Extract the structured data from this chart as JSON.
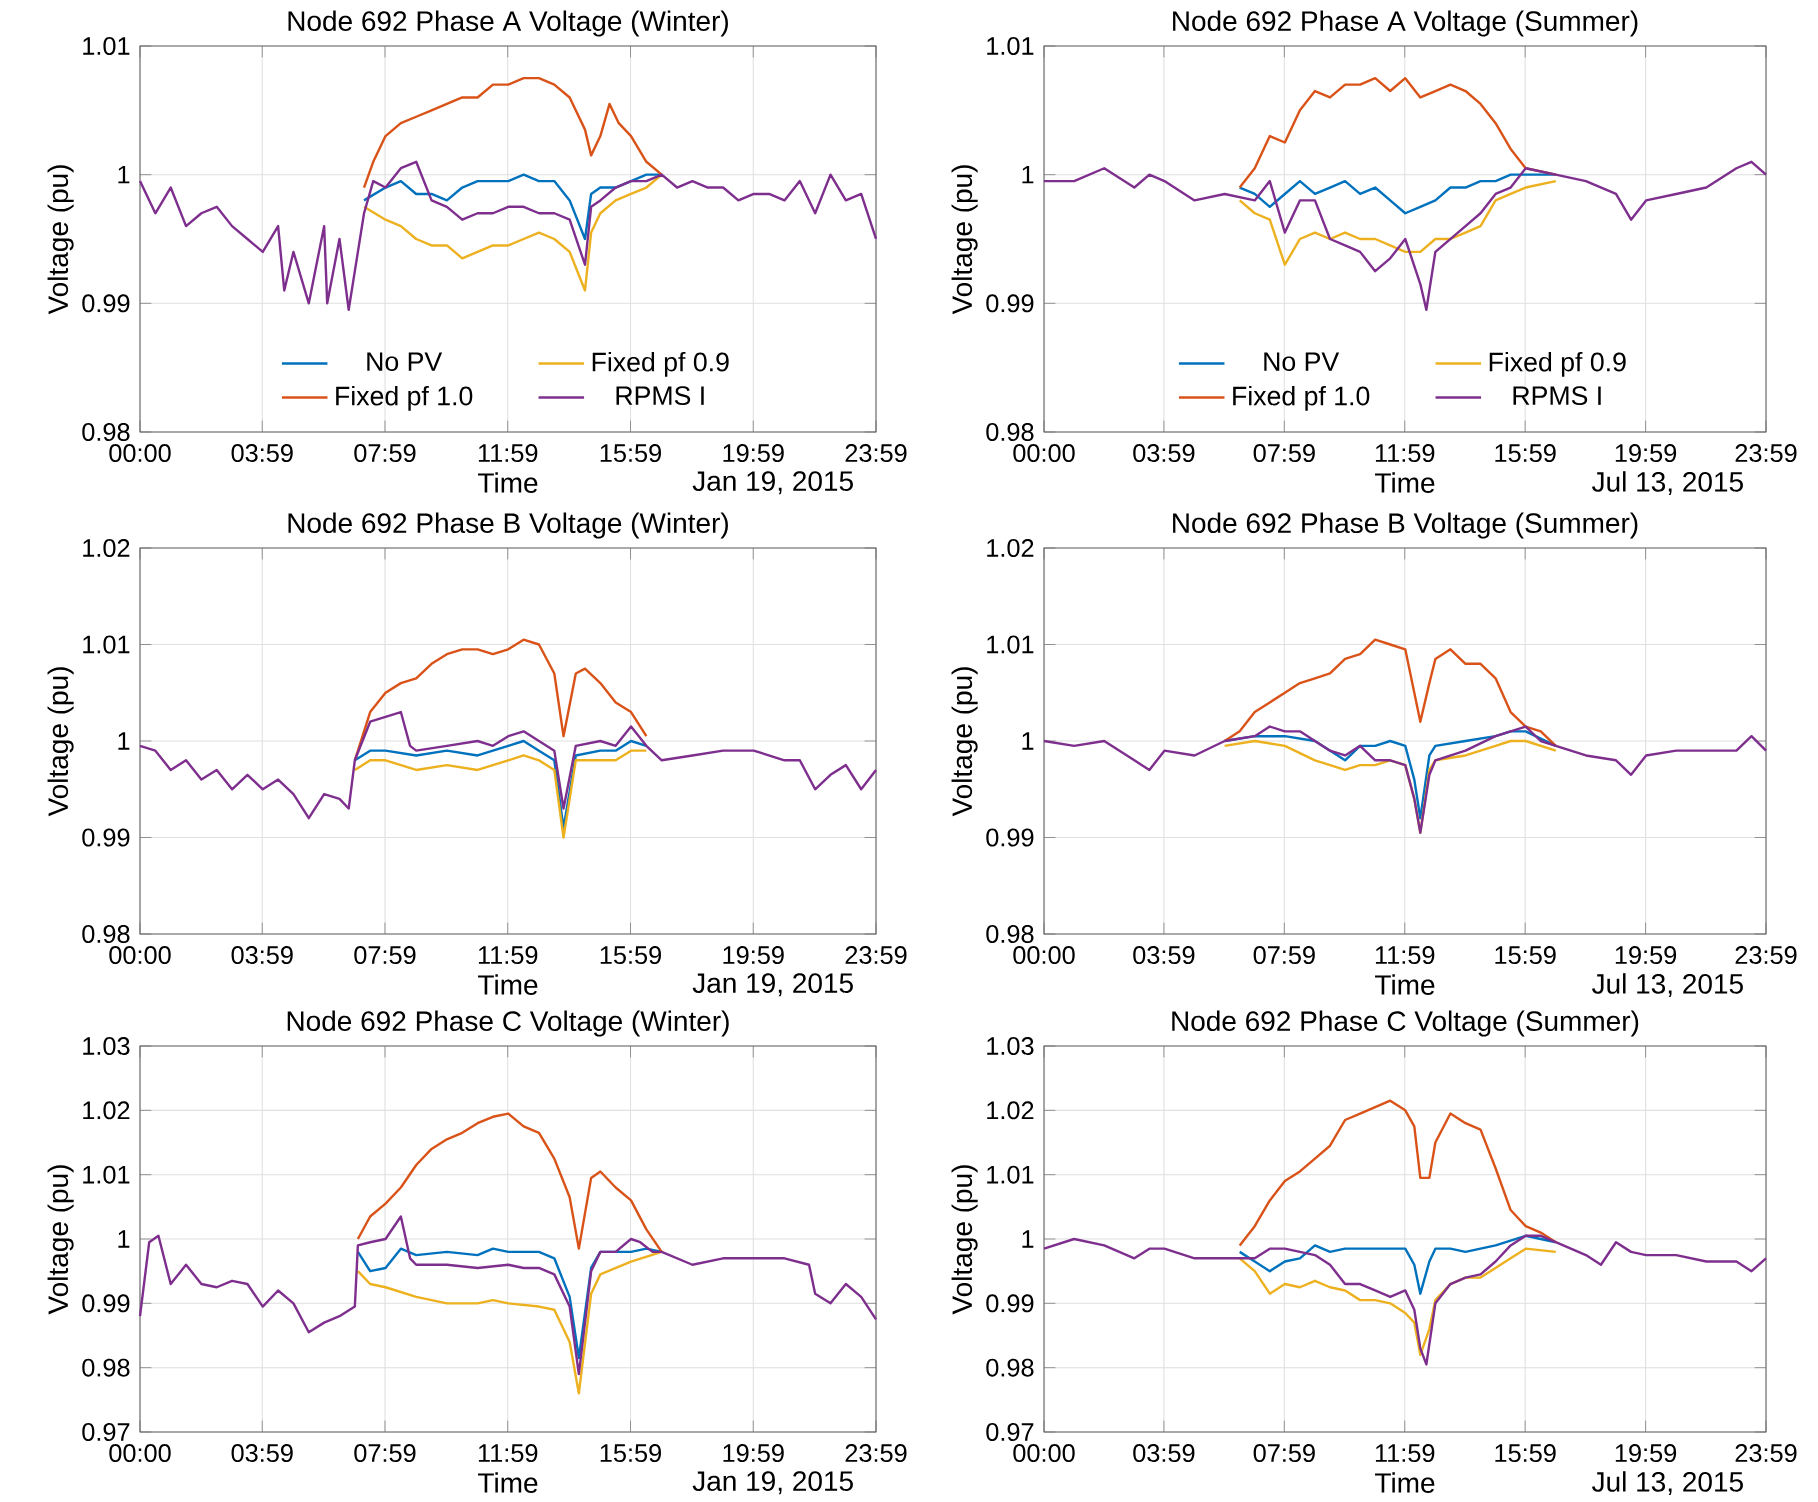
{
  "chart_data": [
    {
      "type": "line",
      "title": "Node 692 Phase A Voltage (Winter)",
      "xlabel": "Time",
      "ylabel": "Voltage (pu)",
      "annotations": [
        "Jan 19, 2015"
      ],
      "xlim": [
        0,
        23.983
      ],
      "xticks": [
        {
          "value": 0,
          "label": "00:00"
        },
        {
          "value": 3.983,
          "label": "03:59"
        },
        {
          "value": 7.983,
          "label": "07:59"
        },
        {
          "value": 11.983,
          "label": "11:59"
        },
        {
          "value": 15.983,
          "label": "15:59"
        },
        {
          "value": 19.983,
          "label": "19:59"
        },
        {
          "value": 23.983,
          "label": "23:59"
        }
      ],
      "ylim": [
        0.98,
        1.01
      ],
      "yticks": [
        0.98,
        0.99,
        1,
        1.01
      ],
      "grid": true,
      "legend": "bottom",
      "series": [
        {
          "name": "No PV",
          "color": "#0072bd",
          "x": [
            7.3,
            8,
            8.5,
            9,
            9.5,
            10,
            10.5,
            11,
            11.5,
            12,
            12.5,
            13,
            13.5,
            14,
            14.5,
            14.7,
            15,
            15.5,
            16,
            16.5,
            17
          ],
          "values": [
            0.998,
            0.999,
            0.9995,
            0.9985,
            0.9985,
            0.998,
            0.999,
            0.9995,
            0.9995,
            0.9995,
            1,
            0.9995,
            0.9995,
            0.998,
            0.995,
            0.9985,
            0.999,
            0.999,
            0.9995,
            1,
            1
          ]
        },
        {
          "name": "Fixed pf 0.9",
          "color": "#edb120",
          "x": [
            7.3,
            8,
            8.5,
            9,
            9.5,
            10,
            10.5,
            11,
            11.5,
            12,
            12.5,
            13,
            13.5,
            14,
            14.5,
            14.7,
            15,
            15.5,
            16,
            16.5,
            17
          ],
          "values": [
            0.9975,
            0.9965,
            0.996,
            0.995,
            0.9945,
            0.9945,
            0.9935,
            0.994,
            0.9945,
            0.9945,
            0.995,
            0.9955,
            0.995,
            0.994,
            0.991,
            0.9955,
            0.997,
            0.998,
            0.9985,
            0.999,
            1
          ]
        },
        {
          "name": "Fixed pf 1.0",
          "color": "#d95319",
          "x": [
            7.3,
            7.6,
            8,
            8.5,
            9,
            9.5,
            10,
            10.5,
            11,
            11.5,
            12,
            12.5,
            13,
            13.5,
            14,
            14.5,
            14.7,
            15,
            15.3,
            15.6,
            16,
            16.5,
            17
          ],
          "values": [
            0.999,
            1.001,
            1.003,
            1.004,
            1.0045,
            1.005,
            1.0055,
            1.006,
            1.006,
            1.007,
            1.007,
            1.0075,
            1.0075,
            1.007,
            1.006,
            1.0035,
            1.0015,
            1.003,
            1.0055,
            1.004,
            1.003,
            1.001,
            1
          ]
        },
        {
          "name": "RPMS I",
          "color": "#7e2f8e",
          "x": [
            0,
            0.5,
            1,
            1.5,
            2,
            2.5,
            3,
            3.5,
            4,
            4.5,
            4.7,
            5,
            5.5,
            6,
            6.1,
            6.5,
            6.8,
            7.3,
            7.6,
            8,
            8.5,
            9,
            9.5,
            10,
            10.5,
            11,
            11.5,
            12,
            12.5,
            13,
            13.5,
            14,
            14.5,
            14.7,
            15,
            15.5,
            16,
            16.5,
            17,
            17.5,
            18,
            18.5,
            19,
            19.5,
            20,
            20.5,
            21,
            21.5,
            22,
            22.5,
            23,
            23.5,
            23.983
          ],
          "values": [
            0.9995,
            0.997,
            0.999,
            0.996,
            0.997,
            0.9975,
            0.996,
            0.995,
            0.994,
            0.996,
            0.991,
            0.994,
            0.99,
            0.996,
            0.99,
            0.995,
            0.9895,
            0.997,
            0.9995,
            0.999,
            1.0005,
            1.001,
            0.998,
            0.9975,
            0.9965,
            0.997,
            0.997,
            0.9975,
            0.9975,
            0.997,
            0.997,
            0.9965,
            0.993,
            0.9975,
            0.998,
            0.999,
            0.9995,
            0.9995,
            1,
            0.999,
            0.9995,
            0.999,
            0.999,
            0.998,
            0.9985,
            0.9985,
            0.998,
            0.9995,
            0.997,
            1,
            0.998,
            0.9985,
            0.995
          ]
        }
      ]
    },
    {
      "type": "line",
      "title": "Node 692 Phase A Voltage (Summer)",
      "xlabel": "Time",
      "ylabel": "Voltage (pu)",
      "annotations": [
        "Jul 13, 2015"
      ],
      "xlim": [
        0,
        23.983
      ],
      "xticks": [
        {
          "value": 0,
          "label": "00:00"
        },
        {
          "value": 3.983,
          "label": "03:59"
        },
        {
          "value": 7.983,
          "label": "07:59"
        },
        {
          "value": 11.983,
          "label": "11:59"
        },
        {
          "value": 15.983,
          "label": "15:59"
        },
        {
          "value": 19.983,
          "label": "19:59"
        },
        {
          "value": 23.983,
          "label": "23:59"
        }
      ],
      "ylim": [
        0.98,
        1.01
      ],
      "yticks": [
        0.98,
        0.99,
        1,
        1.01
      ],
      "grid": true,
      "legend": "bottom",
      "series": [
        {
          "name": "No PV",
          "color": "#0072bd",
          "x": [
            6.5,
            7,
            7.5,
            8,
            8.5,
            9,
            9.5,
            10,
            10.5,
            11,
            11.5,
            12,
            12.5,
            13,
            13.5,
            14,
            14.5,
            15,
            15.5,
            16,
            17
          ],
          "values": [
            0.999,
            0.9985,
            0.9975,
            0.9985,
            0.9995,
            0.9985,
            0.999,
            0.9995,
            0.9985,
            0.999,
            0.998,
            0.997,
            0.9975,
            0.998,
            0.999,
            0.999,
            0.9995,
            0.9995,
            1,
            1,
            1
          ]
        },
        {
          "name": "Fixed pf 0.9",
          "color": "#edb120",
          "x": [
            6.5,
            7,
            7.5,
            8,
            8.5,
            9,
            9.5,
            10,
            10.5,
            11,
            11.5,
            12,
            12.5,
            13,
            13.5,
            14,
            14.5,
            15,
            15.5,
            16,
            17
          ],
          "values": [
            0.998,
            0.997,
            0.9965,
            0.993,
            0.995,
            0.9955,
            0.995,
            0.9955,
            0.995,
            0.995,
            0.9945,
            0.994,
            0.994,
            0.995,
            0.995,
            0.9955,
            0.996,
            0.998,
            0.9985,
            0.999,
            0.9995
          ]
        },
        {
          "name": "Fixed pf 1.0",
          "color": "#d95319",
          "x": [
            6.5,
            7,
            7.5,
            8,
            8.5,
            9,
            9.5,
            10,
            10.5,
            11,
            11.5,
            12,
            12.5,
            13,
            13.5,
            14,
            14.5,
            15,
            15.5,
            16,
            17
          ],
          "values": [
            0.999,
            1.0005,
            1.003,
            1.0025,
            1.005,
            1.0065,
            1.006,
            1.007,
            1.007,
            1.0075,
            1.0065,
            1.0075,
            1.006,
            1.0065,
            1.007,
            1.0065,
            1.0055,
            1.004,
            1.002,
            1.0005,
            1
          ]
        },
        {
          "name": "RPMS I",
          "color": "#7e2f8e",
          "x": [
            0,
            1,
            2,
            3,
            3.5,
            4,
            5,
            6,
            7,
            7.5,
            8,
            8.5,
            9,
            9.5,
            10,
            10.5,
            11,
            11.5,
            12,
            12.5,
            12.7,
            13,
            13.5,
            14,
            14.5,
            15,
            15.5,
            16,
            17,
            18,
            19,
            19.5,
            20,
            21,
            22,
            23,
            23.5,
            23.983
          ],
          "values": [
            0.9995,
            0.9995,
            1.0005,
            0.999,
            1,
            0.9995,
            0.998,
            0.9985,
            0.998,
            0.9995,
            0.9955,
            0.998,
            0.998,
            0.995,
            0.9945,
            0.994,
            0.9925,
            0.9935,
            0.995,
            0.9915,
            0.9895,
            0.994,
            0.995,
            0.996,
            0.997,
            0.9985,
            0.999,
            1.0005,
            1,
            0.9995,
            0.9985,
            0.9965,
            0.998,
            0.9985,
            0.999,
            1.0005,
            1.001,
            1
          ]
        }
      ]
    },
    {
      "type": "line",
      "title": "Node 692 Phase B Voltage (Winter)",
      "xlabel": "Time",
      "ylabel": "Voltage (pu)",
      "annotations": [
        "Jan 19, 2015"
      ],
      "xlim": [
        0,
        23.983
      ],
      "xticks": [
        {
          "value": 0,
          "label": "00:00"
        },
        {
          "value": 3.983,
          "label": "03:59"
        },
        {
          "value": 7.983,
          "label": "07:59"
        },
        {
          "value": 11.983,
          "label": "11:59"
        },
        {
          "value": 15.983,
          "label": "15:59"
        },
        {
          "value": 19.983,
          "label": "19:59"
        },
        {
          "value": 23.983,
          "label": "23:59"
        }
      ],
      "ylim": [
        0.98,
        1.02
      ],
      "yticks": [
        0.98,
        0.99,
        1,
        1.01,
        1.02
      ],
      "grid": true,
      "series": [
        {
          "color": "#0072bd",
          "x": [
            7,
            7.5,
            8,
            9,
            10,
            11,
            12,
            12.5,
            13,
            13.5,
            13.8,
            14.2,
            15,
            15.5,
            16,
            16.5
          ],
          "values": [
            0.998,
            0.999,
            0.999,
            0.9985,
            0.999,
            0.9985,
            0.9995,
            1,
            0.999,
            0.998,
            0.991,
            0.9985,
            0.999,
            0.999,
            1,
            0.9995
          ]
        },
        {
          "color": "#edb120",
          "x": [
            7,
            7.5,
            8,
            9,
            10,
            11,
            12,
            12.5,
            13,
            13.5,
            13.8,
            14.2,
            15,
            15.5,
            16,
            16.5
          ],
          "values": [
            0.997,
            0.998,
            0.998,
            0.997,
            0.9975,
            0.997,
            0.998,
            0.9985,
            0.998,
            0.997,
            0.99,
            0.998,
            0.998,
            0.998,
            0.999,
            0.999
          ]
        },
        {
          "color": "#d95319",
          "x": [
            7,
            7.5,
            8,
            8.5,
            9,
            9.5,
            10,
            10.5,
            11,
            11.5,
            12,
            12.5,
            13,
            13.5,
            13.8,
            14.2,
            14.5,
            15,
            15.5,
            16,
            16.5
          ],
          "values": [
            0.998,
            1.003,
            1.005,
            1.006,
            1.0065,
            1.008,
            1.009,
            1.0095,
            1.0095,
            1.009,
            1.0095,
            1.0105,
            1.01,
            1.007,
            1.0005,
            1.007,
            1.0075,
            1.006,
            1.004,
            1.003,
            1.0005
          ]
        },
        {
          "color": "#7e2f8e",
          "x": [
            0,
            0.5,
            1,
            1.5,
            2,
            2.5,
            3,
            3.5,
            4,
            4.5,
            5,
            5.5,
            6,
            6.5,
            6.8,
            7,
            7.5,
            8,
            8.5,
            8.8,
            9,
            10,
            11,
            11.5,
            12,
            12.5,
            13,
            13.5,
            13.8,
            14.2,
            15,
            15.5,
            16,
            16.5,
            17,
            18,
            19,
            20,
            21,
            21.5,
            22,
            22.5,
            23,
            23.5,
            23.983
          ],
          "values": [
            0.9995,
            0.999,
            0.997,
            0.998,
            0.996,
            0.997,
            0.995,
            0.9965,
            0.995,
            0.996,
            0.9945,
            0.992,
            0.9945,
            0.994,
            0.993,
            0.998,
            1.002,
            1.0025,
            1.003,
            0.9995,
            0.999,
            0.9995,
            1,
            0.9995,
            1.0005,
            1.001,
            1,
            0.999,
            0.993,
            0.9995,
            1,
            0.9995,
            1.0015,
            0.9995,
            0.998,
            0.9985,
            0.999,
            0.999,
            0.998,
            0.998,
            0.995,
            0.9965,
            0.9975,
            0.995,
            0.997
          ]
        }
      ]
    },
    {
      "type": "line",
      "title": "Node 692 Phase B Voltage (Summer)",
      "xlabel": "Time",
      "ylabel": "Voltage (pu)",
      "annotations": [
        "Jul 13, 2015"
      ],
      "xlim": [
        0,
        23.983
      ],
      "xticks": [
        {
          "value": 0,
          "label": "00:00"
        },
        {
          "value": 3.983,
          "label": "03:59"
        },
        {
          "value": 7.983,
          "label": "07:59"
        },
        {
          "value": 11.983,
          "label": "11:59"
        },
        {
          "value": 15.983,
          "label": "15:59"
        },
        {
          "value": 19.983,
          "label": "19:59"
        },
        {
          "value": 23.983,
          "label": "23:59"
        }
      ],
      "ylim": [
        0.98,
        1.02
      ],
      "yticks": [
        0.98,
        0.99,
        1,
        1.01,
        1.02
      ],
      "grid": true,
      "series": [
        {
          "color": "#0072bd",
          "x": [
            6,
            7,
            8,
            9,
            10,
            10.5,
            11,
            11.5,
            12,
            12.3,
            12.5,
            12.8,
            13,
            14,
            15,
            15.5,
            16,
            17
          ],
          "values": [
            1,
            1.0005,
            1.0005,
            1,
            0.998,
            0.9995,
            0.9995,
            1,
            0.9995,
            0.996,
            0.992,
            0.9985,
            0.9995,
            1,
            1.0005,
            1.001,
            1.001,
            0.9995
          ]
        },
        {
          "color": "#edb120",
          "x": [
            6,
            7,
            8,
            9,
            10,
            10.5,
            11,
            11.5,
            12,
            12.3,
            12.5,
            12.8,
            13,
            14,
            15,
            15.5,
            16,
            17
          ],
          "values": [
            0.9995,
            1,
            0.9995,
            0.998,
            0.997,
            0.9975,
            0.9975,
            0.998,
            0.9975,
            0.994,
            0.9905,
            0.997,
            0.998,
            0.9985,
            0.9995,
            1,
            1,
            0.999
          ]
        },
        {
          "color": "#d95319",
          "x": [
            6,
            6.5,
            7,
            7.5,
            8,
            8.5,
            9,
            9.5,
            10,
            10.5,
            11,
            11.5,
            12,
            12.5,
            12.8,
            13,
            13.5,
            14,
            14.5,
            15,
            15.5,
            16,
            16.5,
            17
          ],
          "values": [
            1,
            1.001,
            1.003,
            1.004,
            1.005,
            1.006,
            1.0065,
            1.007,
            1.0085,
            1.009,
            1.0105,
            1.01,
            1.0095,
            1.002,
            1.006,
            1.0085,
            1.0095,
            1.008,
            1.008,
            1.0065,
            1.003,
            1.0015,
            1.001,
            0.9995
          ]
        },
        {
          "color": "#7e2f8e",
          "x": [
            0,
            1,
            2,
            3,
            3.5,
            4,
            5,
            6,
            7,
            7.5,
            8,
            8.5,
            9,
            9.5,
            10,
            10.5,
            11,
            11.5,
            12,
            12.3,
            12.5,
            12.8,
            13,
            14,
            15,
            15.5,
            16,
            16.5,
            17,
            18,
            19,
            19.5,
            20,
            21,
            22,
            23,
            23.5,
            23.983
          ],
          "values": [
            1,
            0.9995,
            1,
            0.998,
            0.997,
            0.999,
            0.9985,
            1,
            1.0005,
            1.0015,
            1.001,
            1.001,
            1,
            0.999,
            0.9985,
            0.9995,
            0.998,
            0.998,
            0.9975,
            0.994,
            0.9905,
            0.9965,
            0.998,
            0.999,
            1.0005,
            1.001,
            1.0015,
            1,
            0.9995,
            0.9985,
            0.998,
            0.9965,
            0.9985,
            0.999,
            0.999,
            0.999,
            1.0005,
            0.999
          ]
        }
      ]
    },
    {
      "type": "line",
      "title": "Node 692 Phase C Voltage (Winter)",
      "xlabel": "Time",
      "ylabel": "Voltage (pu)",
      "annotations": [
        "Jan 19, 2015"
      ],
      "xlim": [
        0,
        23.983
      ],
      "xticks": [
        {
          "value": 0,
          "label": "00:00"
        },
        {
          "value": 3.983,
          "label": "03:59"
        },
        {
          "value": 7.983,
          "label": "07:59"
        },
        {
          "value": 11.983,
          "label": "11:59"
        },
        {
          "value": 15.983,
          "label": "15:59"
        },
        {
          "value": 19.983,
          "label": "19:59"
        },
        {
          "value": 23.983,
          "label": "23:59"
        }
      ],
      "ylim": [
        0.97,
        1.03
      ],
      "yticks": [
        0.97,
        0.98,
        0.99,
        1,
        1.01,
        1.02,
        1.03
      ],
      "grid": true,
      "series": [
        {
          "color": "#0072bd",
          "x": [
            7.1,
            7.5,
            8,
            8.5,
            9,
            10,
            11,
            11.5,
            12,
            13,
            13.5,
            14,
            14.3,
            14.7,
            15,
            16,
            16.5,
            17
          ],
          "values": [
            0.998,
            0.995,
            0.9955,
            0.9985,
            0.9975,
            0.998,
            0.9975,
            0.9985,
            0.998,
            0.998,
            0.997,
            0.991,
            0.9815,
            0.9955,
            0.998,
            0.998,
            0.9985,
            0.998
          ]
        },
        {
          "color": "#edb120",
          "x": [
            7.1,
            7.5,
            8,
            9,
            10,
            11,
            11.5,
            12,
            13,
            13.5,
            14,
            14.3,
            14.7,
            15,
            16,
            17
          ],
          "values": [
            0.995,
            0.993,
            0.9925,
            0.991,
            0.99,
            0.99,
            0.9905,
            0.99,
            0.9895,
            0.989,
            0.984,
            0.976,
            0.9915,
            0.9945,
            0.9965,
            0.998
          ]
        },
        {
          "color": "#d95319",
          "x": [
            7.1,
            7.5,
            8,
            8.5,
            9,
            9.5,
            10,
            10.5,
            11,
            11.5,
            12,
            12.5,
            13,
            13.5,
            14,
            14.3,
            14.7,
            15,
            15.5,
            16,
            16.5,
            17
          ],
          "values": [
            1,
            1.0035,
            1.0055,
            1.008,
            1.0115,
            1.014,
            1.0155,
            1.0165,
            1.018,
            1.019,
            1.0195,
            1.0175,
            1.0165,
            1.0125,
            1.0065,
            0.9985,
            1.0095,
            1.0105,
            1.008,
            1.006,
            1.0015,
            0.998
          ]
        },
        {
          "color": "#7e2f8e",
          "x": [
            0,
            0.3,
            0.6,
            1,
            1.5,
            2,
            2.5,
            3,
            3.5,
            4,
            4.5,
            5,
            5.5,
            6,
            6.5,
            7,
            7.1,
            7.5,
            8,
            8.5,
            8.8,
            9,
            10,
            11,
            12,
            12.5,
            13,
            13.5,
            14,
            14.3,
            14.7,
            15,
            15.5,
            16,
            16.3,
            16.7,
            17,
            18,
            19,
            20,
            21,
            21.8,
            22,
            22.5,
            23,
            23.5,
            23.983
          ],
          "values": [
            0.988,
            0.9995,
            1.0005,
            0.993,
            0.996,
            0.993,
            0.9925,
            0.9935,
            0.993,
            0.9895,
            0.992,
            0.99,
            0.9855,
            0.987,
            0.988,
            0.9895,
            0.999,
            0.9995,
            1,
            1.0035,
            0.997,
            0.996,
            0.996,
            0.9955,
            0.996,
            0.9955,
            0.9955,
            0.9945,
            0.9895,
            0.979,
            0.995,
            0.998,
            0.998,
            1,
            0.9995,
            0.998,
            0.998,
            0.996,
            0.997,
            0.997,
            0.997,
            0.996,
            0.9915,
            0.99,
            0.993,
            0.991,
            0.9875
          ]
        }
      ]
    },
    {
      "type": "line",
      "title": "Node 692 Phase C Voltage (Summer)",
      "xlabel": "Time",
      "ylabel": "Voltage (pu)",
      "annotations": [
        "Jul 13, 2015"
      ],
      "xlim": [
        0,
        23.983
      ],
      "xticks": [
        {
          "value": 0,
          "label": "00:00"
        },
        {
          "value": 3.983,
          "label": "03:59"
        },
        {
          "value": 7.983,
          "label": "07:59"
        },
        {
          "value": 11.983,
          "label": "11:59"
        },
        {
          "value": 15.983,
          "label": "15:59"
        },
        {
          "value": 19.983,
          "label": "19:59"
        },
        {
          "value": 23.983,
          "label": "23:59"
        }
      ],
      "ylim": [
        0.97,
        1.03
      ],
      "yticks": [
        0.97,
        0.98,
        0.99,
        1,
        1.01,
        1.02,
        1.03
      ],
      "grid": true,
      "series": [
        {
          "color": "#0072bd",
          "x": [
            6.5,
            7,
            7.5,
            8,
            8.5,
            9,
            9.5,
            10,
            10.5,
            11,
            11.5,
            12,
            12.3,
            12.5,
            12.8,
            13,
            13.5,
            14,
            14.5,
            15,
            16,
            17
          ],
          "values": [
            0.998,
            0.9965,
            0.995,
            0.9965,
            0.997,
            0.999,
            0.998,
            0.9985,
            0.9985,
            0.9985,
            0.9985,
            0.9985,
            0.996,
            0.9915,
            0.9965,
            0.9985,
            0.9985,
            0.998,
            0.9985,
            0.999,
            1.0005,
            0.9995
          ]
        },
        {
          "color": "#edb120",
          "x": [
            6.5,
            7,
            7.5,
            8,
            8.5,
            9,
            9.5,
            10,
            10.5,
            11,
            11.5,
            12,
            12.3,
            12.5,
            12.8,
            13,
            13.5,
            14,
            14.5,
            15,
            15.5,
            16,
            17
          ],
          "values": [
            0.997,
            0.995,
            0.9915,
            0.993,
            0.9925,
            0.9935,
            0.9925,
            0.992,
            0.9905,
            0.9905,
            0.99,
            0.9885,
            0.987,
            0.982,
            0.986,
            0.9905,
            0.993,
            0.994,
            0.994,
            0.9955,
            0.997,
            0.9985,
            0.998
          ]
        },
        {
          "color": "#d95319",
          "x": [
            6.5,
            7,
            7.5,
            8,
            8.5,
            9,
            9.5,
            10,
            10.5,
            11,
            11.5,
            12,
            12.3,
            12.5,
            12.8,
            13,
            13.5,
            14,
            14.5,
            15,
            15.5,
            16,
            16.5,
            17
          ],
          "values": [
            0.999,
            1.002,
            1.006,
            1.009,
            1.0105,
            1.0125,
            1.0145,
            1.0185,
            1.0195,
            1.0205,
            1.0215,
            1.02,
            1.0175,
            1.0095,
            1.0095,
            1.015,
            1.0195,
            1.018,
            1.017,
            1.011,
            1.0045,
            1.002,
            1.001,
            0.9995
          ]
        },
        {
          "color": "#7e2f8e",
          "x": [
            0,
            1,
            2,
            3,
            3.5,
            4,
            5,
            6,
            7,
            7.5,
            8,
            8.5,
            9,
            9.5,
            10,
            10.5,
            11,
            11.5,
            12,
            12.3,
            12.5,
            12.7,
            13,
            13.5,
            14,
            14.5,
            15,
            15.5,
            16,
            16.5,
            17,
            18,
            18.5,
            19,
            19.5,
            20,
            21,
            22,
            23,
            23.5,
            23.983
          ],
          "values": [
            0.9985,
            1,
            0.999,
            0.997,
            0.9985,
            0.9985,
            0.997,
            0.997,
            0.997,
            0.9985,
            0.9985,
            0.998,
            0.9975,
            0.996,
            0.993,
            0.993,
            0.992,
            0.991,
            0.992,
            0.989,
            0.983,
            0.9805,
            0.99,
            0.993,
            0.994,
            0.9945,
            0.9965,
            0.999,
            1.0005,
            1.0005,
            0.9995,
            0.9975,
            0.996,
            0.9995,
            0.998,
            0.9975,
            0.9975,
            0.9965,
            0.9965,
            0.995,
            0.997
          ]
        }
      ]
    }
  ]
}
